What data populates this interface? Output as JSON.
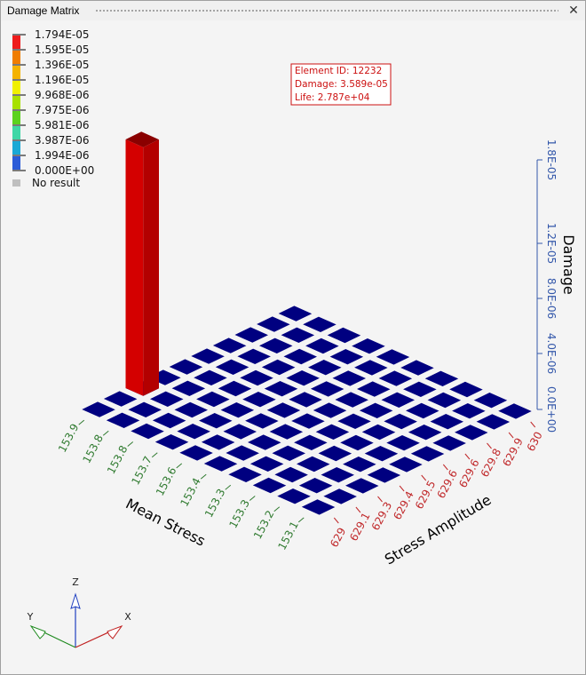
{
  "window": {
    "title": "Damage Matrix"
  },
  "colors": {
    "cell": "#000080",
    "bar_front": "#d40000",
    "bar_side": "#b30000",
    "bar_top": "#8a0000",
    "axis_mean": "#2f7a2f",
    "axis_amp": "#c0282a",
    "axis_damage": "#3357aa"
  },
  "legend": {
    "swatches": [
      "#ee1c1c",
      "#f07d00",
      "#f4b300",
      "#f0f000",
      "#a8e100",
      "#5cd21e",
      "#3fd7a6",
      "#1aa9d6",
      "#2b5cd8",
      "#0000b0"
    ],
    "labels": [
      "1.794E-05",
      "1.595E-05",
      "1.396E-05",
      "1.196E-05",
      "9.968E-06",
      "7.975E-06",
      "5.981E-06",
      "3.987E-06",
      "1.994E-06",
      "0.000E+00"
    ],
    "no_result_label": "No result",
    "no_result_color": "#bfbfbf"
  },
  "tooltip": {
    "line1": "Element ID: 12232",
    "line2": "Damage: 3.589e-05",
    "line3": "Life: 2.787e+04"
  },
  "triad": {
    "z": "Z",
    "y": "Y",
    "x": "X"
  },
  "chart_data": {
    "type": "bar",
    "title": "",
    "x_axis": {
      "label": "Stress Amplitude",
      "ticks": [
        "629",
        "629.1",
        "629.3",
        "629.4",
        "629.5",
        "629.6",
        "629.6",
        "629.8",
        "629.9",
        "630"
      ]
    },
    "y_axis": {
      "label": "Mean Stress",
      "ticks": [
        "153.1",
        "153.2",
        "153.3",
        "153.3",
        "153.4",
        "153.6",
        "153.7",
        "153.8",
        "153.8",
        "153.9"
      ]
    },
    "z_axis": {
      "label": "Damage",
      "ticks": [
        "0.0E+00",
        "4.0E-06",
        "8.0E-06",
        "1.2E-05",
        "1.8E-05"
      ],
      "tick_values": [
        0,
        4e-06,
        8e-06,
        1.2e-05,
        1.8e-05
      ]
    },
    "grid_size": [
      10,
      10
    ],
    "bars": [
      {
        "amp_index": 2,
        "mean_index": 9,
        "value": 1.794e-05
      }
    ]
  }
}
